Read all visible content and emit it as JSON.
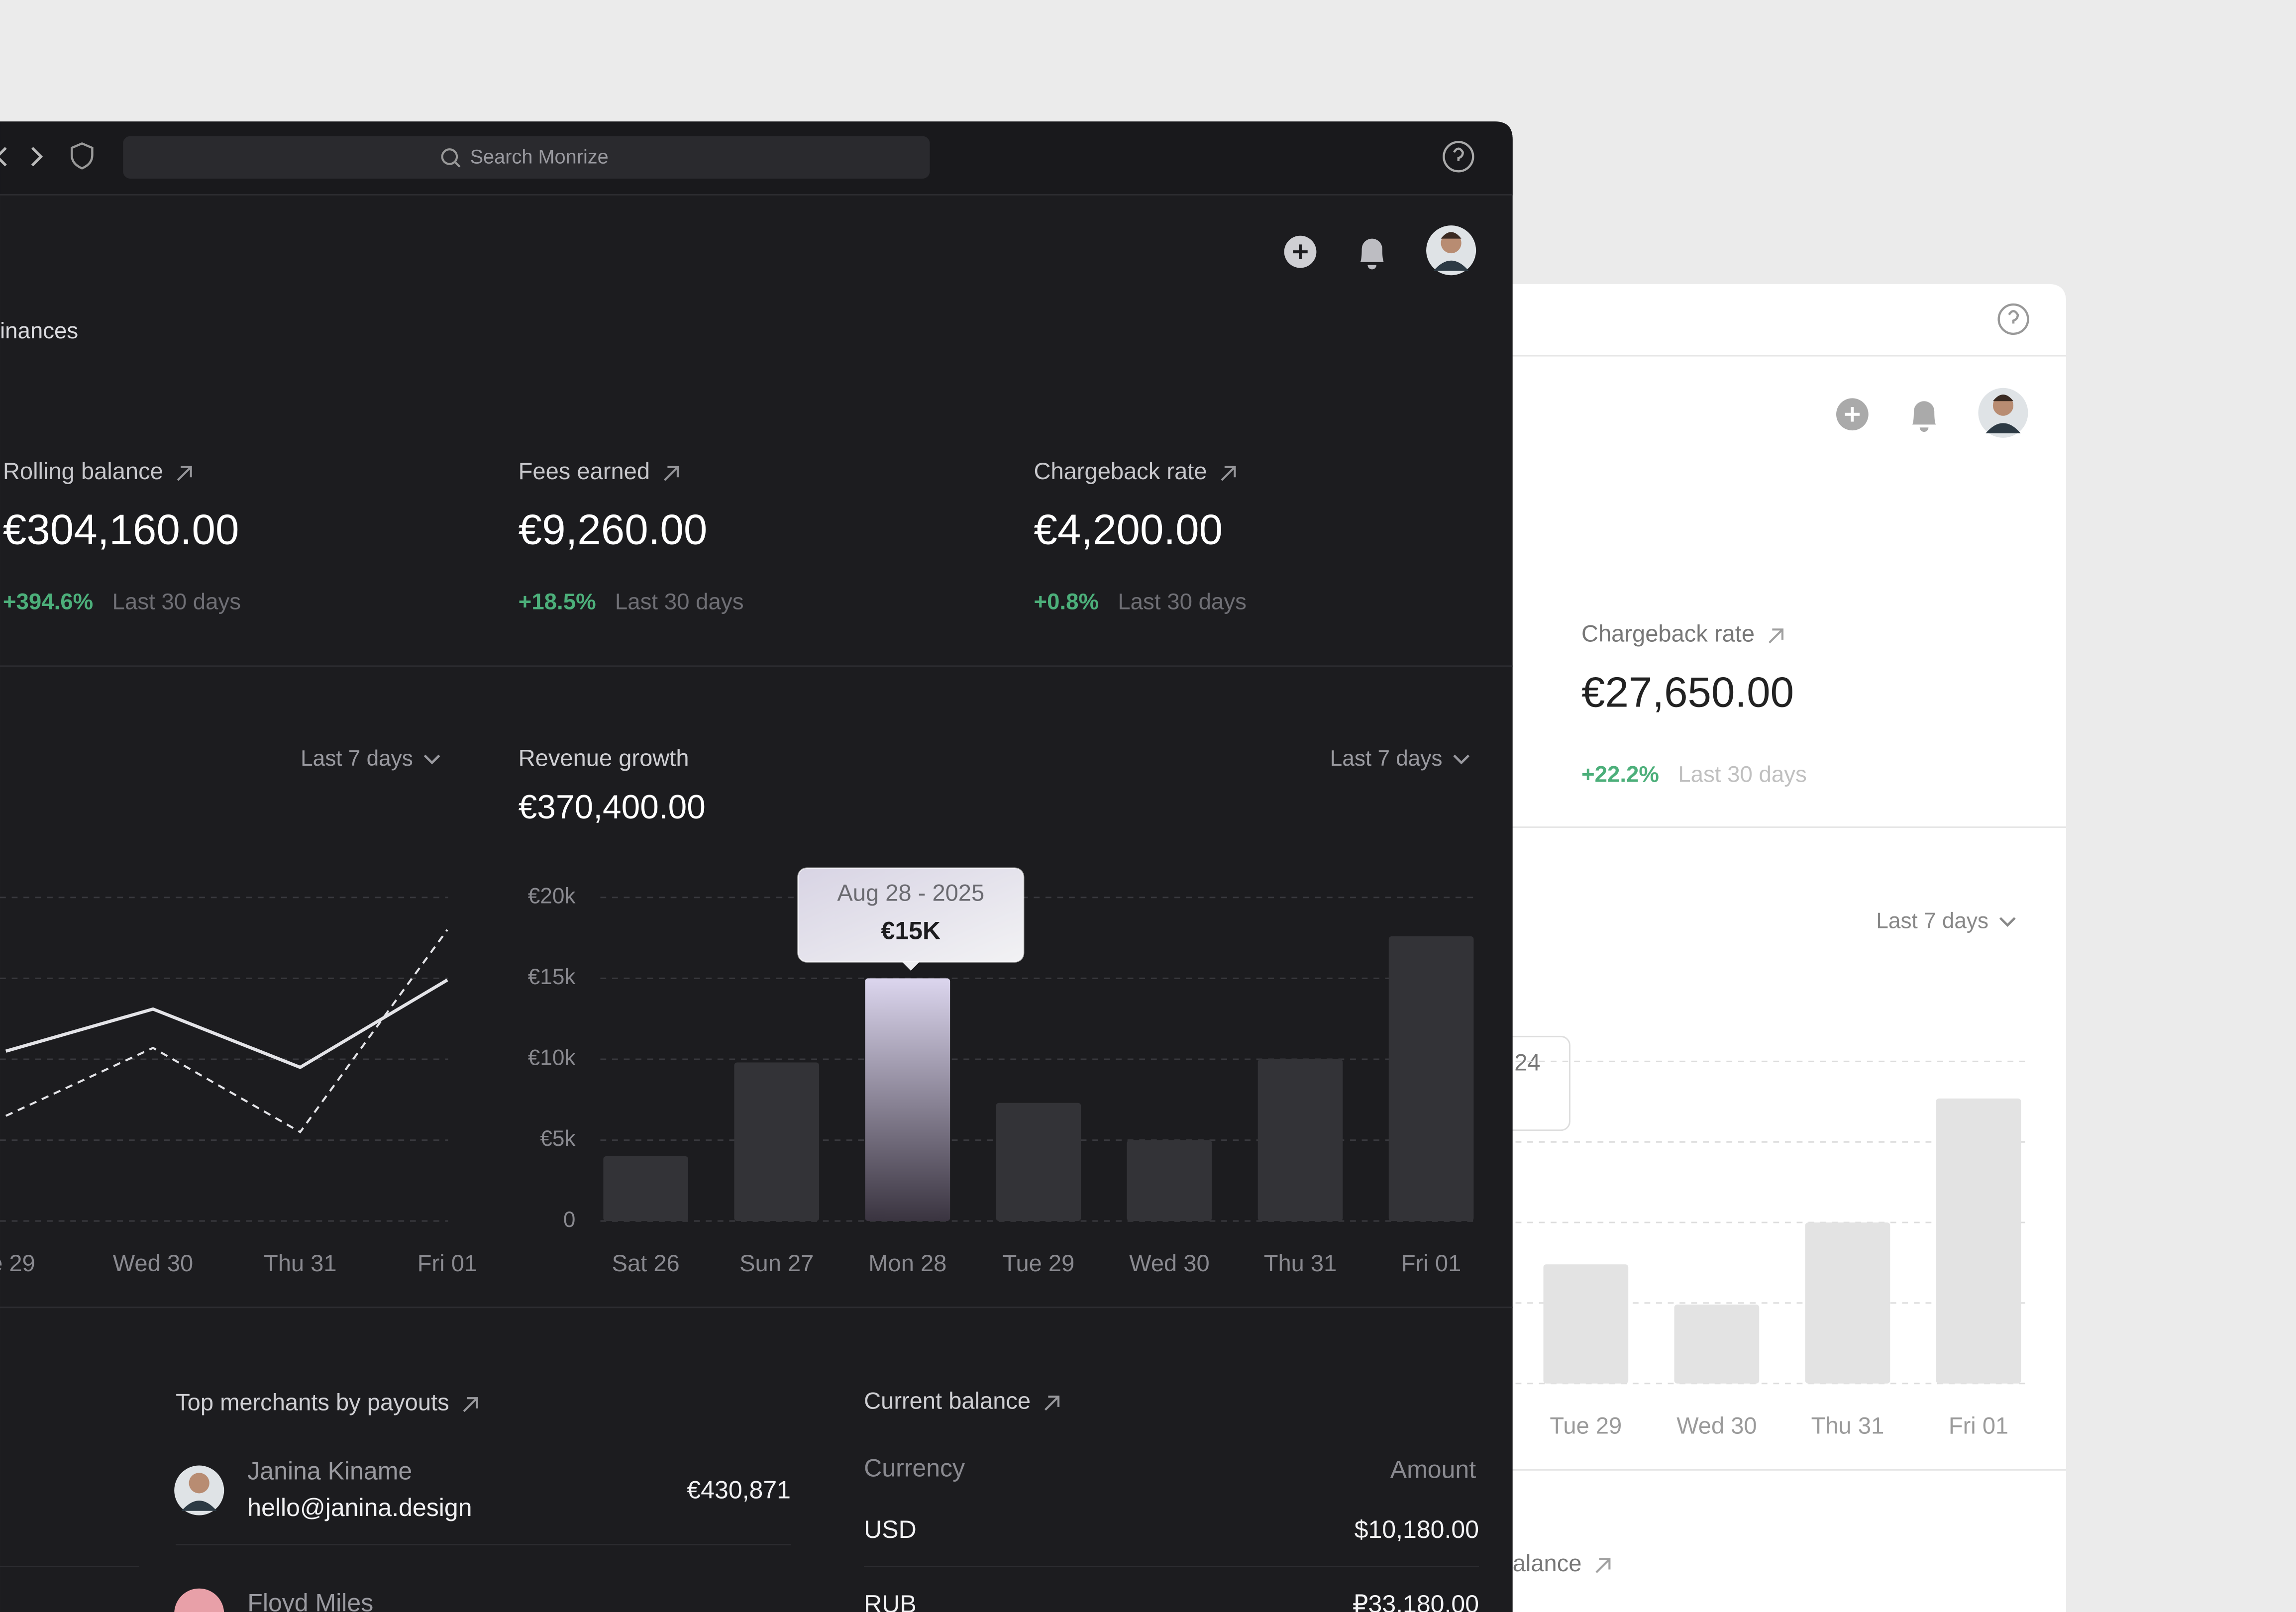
{
  "dark_window": {
    "search_placeholder": "Search Monrize",
    "breadcrumb": "inances",
    "stats": [
      {
        "label": "Rolling balance",
        "value": "€304,160.00",
        "change": "+394.6%",
        "period": "Last 30 days"
      },
      {
        "label": "Fees earned",
        "value": "€9,260.00",
        "change": "+18.5%",
        "period": "Last 30 days"
      },
      {
        "label": "Chargeback rate",
        "value": "€4,200.00",
        "change": "+0.8%",
        "period": "Last 30 days"
      }
    ],
    "top_merchants": {
      "title": "Top merchants by payouts",
      "rows": [
        {
          "name": "Janina Kiname",
          "email": "hello@janina.design",
          "amount": "€430,871"
        },
        {
          "name": "Floyd Miles"
        }
      ]
    },
    "current_balance": {
      "title": "Current balance",
      "columns": [
        "Currency",
        "Amount"
      ],
      "rows": [
        [
          "USD",
          "$10,180.00"
        ],
        [
          "RUB",
          "₽33,180.00"
        ]
      ]
    }
  },
  "light_window": {
    "stat": {
      "label": "Chargeback rate",
      "value": "€27,650.00",
      "change": "+22.2%",
      "period": "Last 30 days"
    },
    "section_title": "alance"
  },
  "chart_data": [
    {
      "type": "line",
      "period": "Last 7 days",
      "categories": [
        "ue 29",
        "Wed 30",
        "Thu 31",
        "Fri 01"
      ],
      "series": [
        {
          "color": "#e4e4e8",
          "dash": false,
          "values": [
            10500,
            13100,
            9500,
            14900
          ]
        },
        {
          "color": "#e4e4e8",
          "dash": true,
          "values": [
            6500,
            10700,
            5500,
            18000
          ]
        }
      ],
      "ylim": [
        0,
        20000
      ],
      "yticks": [
        0,
        5000,
        10000,
        15000,
        20000
      ],
      "tick_labels": false,
      "grid": true
    },
    {
      "type": "bar",
      "title": "Revenue growth",
      "total": "€370,400.00",
      "period": "Last 7 days",
      "categories": [
        "Sat 26",
        "Sun 27",
        "Mon 28",
        "Tue 29",
        "Wed 30",
        "Thu 31",
        "Fri 01"
      ],
      "values": [
        4000,
        9800,
        15000,
        7300,
        5000,
        10000,
        17600
      ],
      "value_labels": [
        null,
        null,
        "€15K",
        null,
        null,
        null,
        null
      ],
      "tooltip_title": "Aug 28 - 2025",
      "color": "#333337",
      "highlight_color": "#dcd6ee",
      "ylim": [
        0,
        20000
      ],
      "yticks": [
        0,
        {
          "value": 5000,
          "label": "€5k"
        },
        {
          "value": 10000,
          "label": "€10k"
        },
        {
          "value": 15000,
          "label": "€15k"
        },
        {
          "value": 20000,
          "label": "€20k"
        }
      ],
      "tick_labels": true,
      "grid": true
    },
    {
      "type": "bar",
      "period": "Last 7 days",
      "categories": [
        "Tue 29",
        "Wed 30",
        "Thu 31",
        "Fri 01"
      ],
      "values": [
        7400,
        4900,
        10000,
        17700
      ],
      "tooltip_fragment": "24",
      "color": "#e3e3e3",
      "ylim": [
        0,
        20000
      ],
      "yticks": [
        0,
        5000,
        10000,
        15000,
        20000
      ],
      "tick_labels": false,
      "grid": true
    }
  ]
}
